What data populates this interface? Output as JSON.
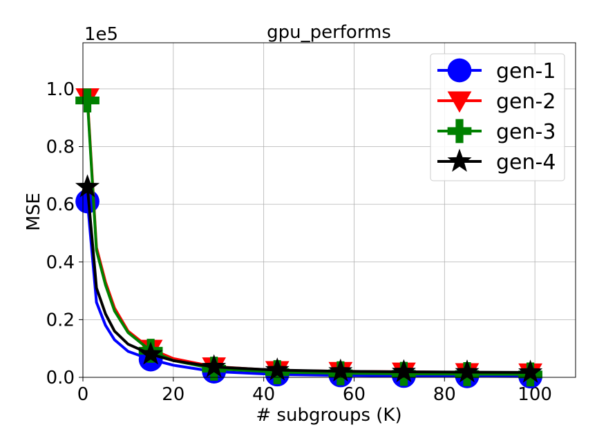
{
  "chart_data": {
    "type": "line",
    "title": "gpu_performs",
    "xlabel": "# subgroups (K)",
    "ylabel": "MSE",
    "y_multiplier_label": "1e5",
    "xlim": [
      0,
      109
    ],
    "ylim": [
      0,
      1.16
    ],
    "x_ticks": [
      0,
      20,
      40,
      60,
      80,
      100
    ],
    "y_ticks": [
      0.0,
      0.2,
      0.4,
      0.6,
      0.8,
      1.0
    ],
    "x_tick_labels": [
      "0",
      "20",
      "40",
      "60",
      "80",
      "100"
    ],
    "y_tick_labels": [
      "0.0",
      "0.2",
      "0.4",
      "0.6",
      "0.8",
      "1.0"
    ],
    "grid": true,
    "legend_position": "top-right",
    "x": [
      1,
      3,
      5,
      7,
      10,
      15,
      20,
      29,
      43,
      57,
      71,
      85,
      99
    ],
    "marker_x": [
      1,
      15,
      29,
      43,
      57,
      71,
      85,
      99
    ],
    "series": [
      {
        "name": "gen-1",
        "color": "#0000ff",
        "marker": "circle",
        "values": [
          0.61,
          0.26,
          0.18,
          0.13,
          0.09,
          0.062,
          0.042,
          0.02,
          0.01,
          0.007,
          0.005,
          0.004,
          0.003
        ]
      },
      {
        "name": "gen-2",
        "color": "#ff0000",
        "marker": "triangle-down",
        "values": [
          0.97,
          0.45,
          0.33,
          0.24,
          0.16,
          0.098,
          0.065,
          0.037,
          0.024,
          0.021,
          0.019,
          0.017,
          0.016
        ]
      },
      {
        "name": "gen-3",
        "color": "#008000",
        "marker": "plus",
        "values": [
          0.96,
          0.44,
          0.32,
          0.23,
          0.155,
          0.092,
          0.058,
          0.03,
          0.018,
          0.014,
          0.012,
          0.011,
          0.01
        ]
      },
      {
        "name": "gen-4",
        "color": "#000000",
        "marker": "star",
        "values": [
          0.66,
          0.31,
          0.22,
          0.16,
          0.115,
          0.08,
          0.058,
          0.036,
          0.025,
          0.021,
          0.019,
          0.018,
          0.017
        ]
      }
    ]
  }
}
